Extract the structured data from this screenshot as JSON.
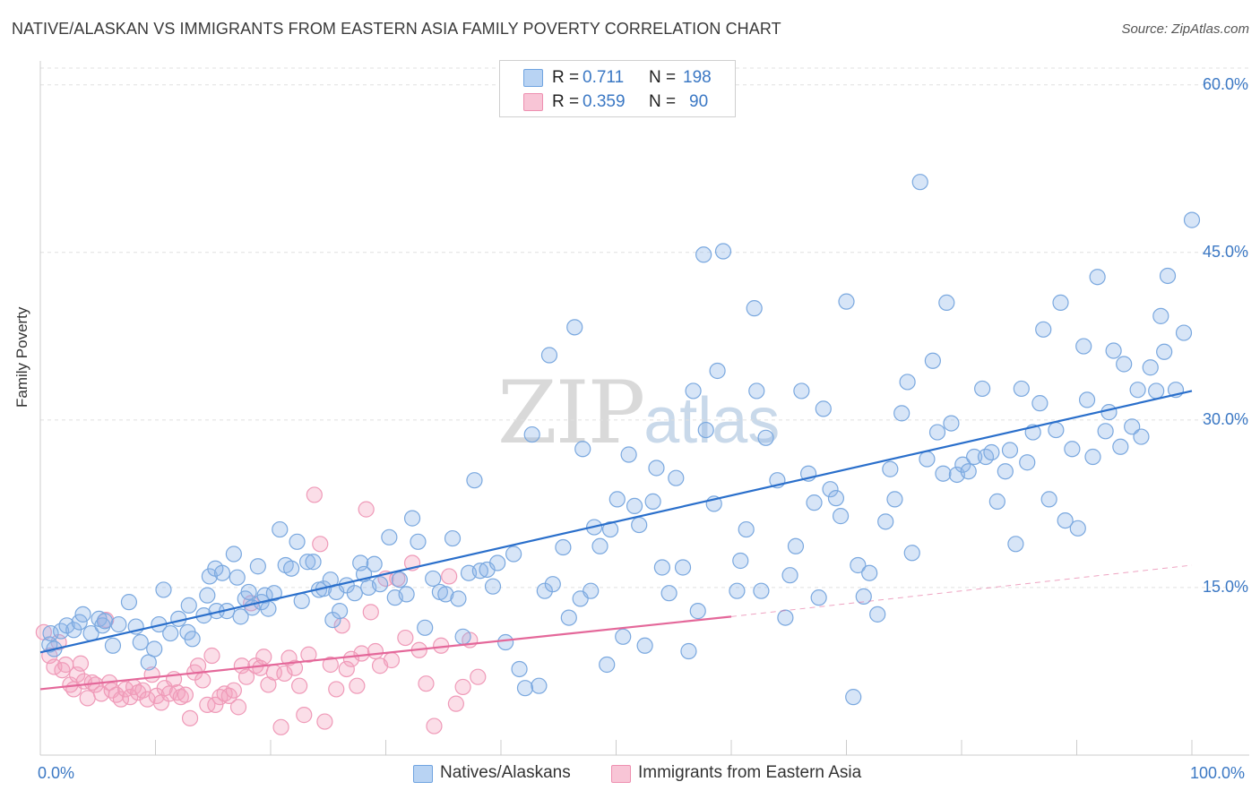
{
  "title": "NATIVE/ALASKAN VS IMMIGRANTS FROM EASTERN ASIA FAMILY POVERTY CORRELATION CHART",
  "source": "Source: ZipAtlas.com",
  "watermark": {
    "zip": "ZIP",
    "atlas": "atlas"
  },
  "legend": {
    "rows": [
      {
        "r_label": "R =",
        "r_value": "0.711",
        "n_label": "N =",
        "n_value": "198",
        "color": "#6fa3e0",
        "fill": "#b8d3f3"
      },
      {
        "r_label": "R =",
        "r_value": "0.359",
        "n_label": "N =",
        "n_value": "90",
        "color": "#ee8fb0",
        "fill": "#f8c5d6"
      }
    ]
  },
  "bottom_legend": [
    {
      "label": "Natives/Alaskans",
      "color": "#6fa3e0",
      "fill": "#b8d3f3"
    },
    {
      "label": "Immigrants from Eastern Asia",
      "color": "#ee8fb0",
      "fill": "#f8c5d6"
    }
  ],
  "colors": {
    "blue_point_fill": "rgba(140,180,232,0.35)",
    "blue_point_stroke": "#7aa8df",
    "blue_line": "#2a6fcb",
    "pink_point_fill": "rgba(244,160,190,0.35)",
    "pink_point_stroke": "#ef9ab8",
    "pink_line": "#e4689a",
    "grid": "#e0e0e0",
    "axis": "#cccccc",
    "tick_label": "#3b78c4"
  },
  "chart_data": {
    "type": "scatter",
    "title": "NATIVE/ALASKAN VS IMMIGRANTS FROM EASTERN ASIA FAMILY POVERTY CORRELATION CHART",
    "xlabel": "",
    "ylabel": "Family Poverty",
    "x_tick_labels": [
      "0.0%",
      "100.0%"
    ],
    "y_tick_labels": [
      "15.0%",
      "30.0%",
      "45.0%",
      "60.0%"
    ],
    "y_ticks": [
      15,
      30,
      45,
      60
    ],
    "xlim": [
      0,
      100
    ],
    "ylim": [
      0,
      61.5
    ],
    "grid": "horizontal dashed",
    "legend_position": "top-center",
    "series": [
      {
        "name": "Natives/Alaskans",
        "r": 0.711,
        "n": 198,
        "trend": {
          "x": [
            0,
            100
          ],
          "y": [
            9.2,
            32.6
          ],
          "style": "solid"
        },
        "points": [
          [
            0.8,
            9.9
          ],
          [
            0.9,
            10.9
          ],
          [
            1.2,
            9.5
          ],
          [
            1.8,
            11.1
          ],
          [
            2.3,
            11.6
          ],
          [
            2.9,
            11.2
          ],
          [
            3.4,
            11.9
          ],
          [
            3.7,
            12.6
          ],
          [
            4.4,
            10.9
          ],
          [
            5.1,
            12.2
          ],
          [
            5.4,
            11.6
          ],
          [
            5.6,
            12.0
          ],
          [
            6.3,
            9.8
          ],
          [
            6.8,
            11.7
          ],
          [
            7.7,
            13.7
          ],
          [
            8.3,
            11.5
          ],
          [
            8.7,
            10.1
          ],
          [
            9.4,
            8.3
          ],
          [
            9.9,
            9.5
          ],
          [
            10.3,
            11.7
          ],
          [
            10.7,
            14.8
          ],
          [
            11.3,
            10.9
          ],
          [
            12.0,
            12.2
          ],
          [
            12.8,
            11.0
          ],
          [
            12.9,
            13.4
          ],
          [
            13.2,
            10.4
          ],
          [
            14.2,
            12.5
          ],
          [
            14.5,
            14.3
          ],
          [
            14.7,
            16.0
          ],
          [
            15.2,
            16.7
          ],
          [
            15.3,
            12.9
          ],
          [
            15.8,
            16.3
          ],
          [
            16.2,
            12.9
          ],
          [
            16.8,
            18.0
          ],
          [
            17.1,
            15.9
          ],
          [
            17.4,
            12.4
          ],
          [
            17.8,
            14.0
          ],
          [
            18.1,
            14.6
          ],
          [
            18.4,
            13.2
          ],
          [
            18.9,
            16.9
          ],
          [
            19.2,
            13.7
          ],
          [
            19.5,
            14.3
          ],
          [
            19.8,
            13.1
          ],
          [
            20.3,
            14.5
          ],
          [
            20.8,
            20.2
          ],
          [
            21.3,
            17.0
          ],
          [
            21.8,
            16.7
          ],
          [
            22.3,
            19.1
          ],
          [
            22.7,
            13.8
          ],
          [
            23.2,
            17.3
          ],
          [
            23.7,
            17.3
          ],
          [
            24.2,
            14.8
          ],
          [
            24.6,
            14.9
          ],
          [
            25.2,
            15.7
          ],
          [
            25.4,
            12.1
          ],
          [
            25.7,
            14.6
          ],
          [
            26.0,
            12.9
          ],
          [
            26.6,
            15.2
          ],
          [
            27.3,
            14.5
          ],
          [
            27.8,
            17.2
          ],
          [
            28.1,
            16.2
          ],
          [
            28.5,
            15.0
          ],
          [
            29.0,
            17.1
          ],
          [
            29.5,
            15.3
          ],
          [
            30.3,
            19.5
          ],
          [
            30.8,
            14.1
          ],
          [
            31.2,
            15.7
          ],
          [
            31.8,
            14.4
          ],
          [
            32.3,
            21.2
          ],
          [
            32.8,
            19.1
          ],
          [
            33.4,
            11.4
          ],
          [
            34.1,
            15.8
          ],
          [
            34.7,
            14.6
          ],
          [
            35.2,
            14.4
          ],
          [
            35.8,
            19.4
          ],
          [
            36.3,
            14.0
          ],
          [
            36.7,
            10.6
          ],
          [
            37.2,
            16.3
          ],
          [
            37.7,
            24.6
          ],
          [
            38.2,
            16.5
          ],
          [
            38.8,
            16.6
          ],
          [
            39.3,
            15.1
          ],
          [
            39.7,
            17.2
          ],
          [
            40.4,
            10.1
          ],
          [
            41.1,
            18.0
          ],
          [
            41.6,
            7.7
          ],
          [
            42.1,
            6.0
          ],
          [
            42.7,
            28.7
          ],
          [
            43.3,
            6.2
          ],
          [
            43.8,
            14.7
          ],
          [
            44.2,
            35.8
          ],
          [
            44.5,
            15.3
          ],
          [
            45.4,
            18.6
          ],
          [
            45.9,
            12.3
          ],
          [
            46.4,
            38.3
          ],
          [
            46.9,
            14.0
          ],
          [
            47.1,
            27.4
          ],
          [
            47.8,
            14.7
          ],
          [
            48.1,
            20.4
          ],
          [
            48.6,
            18.7
          ],
          [
            49.2,
            8.1
          ],
          [
            49.5,
            20.2
          ],
          [
            50.1,
            22.9
          ],
          [
            50.6,
            10.6
          ],
          [
            51.1,
            26.9
          ],
          [
            51.6,
            22.3
          ],
          [
            52.0,
            20.6
          ],
          [
            52.5,
            9.8
          ],
          [
            53.2,
            22.7
          ],
          [
            53.5,
            25.7
          ],
          [
            54.0,
            16.8
          ],
          [
            54.6,
            14.5
          ],
          [
            55.2,
            24.8
          ],
          [
            55.8,
            16.8
          ],
          [
            56.3,
            9.3
          ],
          [
            56.7,
            32.6
          ],
          [
            57.1,
            12.9
          ],
          [
            57.6,
            44.8
          ],
          [
            57.8,
            29.1
          ],
          [
            58.5,
            22.5
          ],
          [
            58.8,
            34.4
          ],
          [
            59.3,
            45.1
          ],
          [
            60.5,
            14.7
          ],
          [
            60.8,
            17.4
          ],
          [
            61.3,
            20.2
          ],
          [
            62.0,
            40.0
          ],
          [
            62.2,
            32.6
          ],
          [
            62.6,
            14.7
          ],
          [
            63.0,
            28.4
          ],
          [
            64.0,
            24.6
          ],
          [
            64.7,
            12.3
          ],
          [
            65.1,
            16.1
          ],
          [
            65.6,
            18.7
          ],
          [
            66.1,
            32.6
          ],
          [
            66.7,
            25.2
          ],
          [
            67.2,
            22.6
          ],
          [
            67.6,
            14.1
          ],
          [
            68.0,
            31.0
          ],
          [
            68.6,
            23.8
          ],
          [
            69.1,
            23.0
          ],
          [
            69.5,
            21.4
          ],
          [
            70.0,
            40.6
          ],
          [
            70.6,
            5.2
          ],
          [
            71.0,
            17.0
          ],
          [
            71.5,
            14.2
          ],
          [
            72.0,
            16.3
          ],
          [
            72.7,
            12.6
          ],
          [
            73.4,
            20.9
          ],
          [
            73.8,
            25.6
          ],
          [
            74.2,
            22.9
          ],
          [
            74.8,
            30.6
          ],
          [
            75.3,
            33.4
          ],
          [
            75.7,
            18.1
          ],
          [
            76.4,
            51.3
          ],
          [
            77.0,
            26.5
          ],
          [
            77.5,
            35.3
          ],
          [
            77.9,
            28.9
          ],
          [
            78.4,
            25.2
          ],
          [
            78.7,
            40.5
          ],
          [
            79.1,
            29.7
          ],
          [
            79.6,
            25.1
          ],
          [
            80.1,
            26.0
          ],
          [
            80.6,
            25.4
          ],
          [
            81.1,
            26.7
          ],
          [
            81.8,
            32.8
          ],
          [
            82.1,
            26.7
          ],
          [
            82.6,
            27.1
          ],
          [
            83.1,
            22.7
          ],
          [
            83.8,
            25.4
          ],
          [
            84.2,
            27.3
          ],
          [
            84.7,
            18.9
          ],
          [
            85.2,
            32.8
          ],
          [
            85.7,
            26.2
          ],
          [
            86.2,
            28.9
          ],
          [
            86.8,
            31.5
          ],
          [
            87.1,
            38.1
          ],
          [
            87.6,
            22.9
          ],
          [
            88.2,
            29.1
          ],
          [
            88.6,
            40.5
          ],
          [
            89.0,
            21.0
          ],
          [
            89.6,
            27.4
          ],
          [
            90.1,
            20.3
          ],
          [
            90.6,
            36.6
          ],
          [
            90.9,
            31.8
          ],
          [
            91.4,
            26.7
          ],
          [
            91.8,
            42.8
          ],
          [
            92.5,
            29.0
          ],
          [
            92.8,
            30.7
          ],
          [
            93.2,
            36.2
          ],
          [
            93.8,
            27.6
          ],
          [
            94.1,
            35.0
          ],
          [
            94.8,
            29.4
          ],
          [
            95.3,
            32.7
          ],
          [
            95.6,
            28.5
          ],
          [
            96.4,
            34.7
          ],
          [
            96.9,
            32.6
          ],
          [
            97.3,
            39.3
          ],
          [
            97.6,
            36.1
          ],
          [
            97.9,
            42.9
          ],
          [
            98.6,
            32.7
          ],
          [
            99.3,
            37.8
          ],
          [
            100.0,
            47.9
          ]
        ]
      },
      {
        "name": "Immigrants from Eastern Asia",
        "r": 0.359,
        "n": 90,
        "trend": {
          "x": [
            0,
            60
          ],
          "y": [
            5.9,
            12.4
          ],
          "x_dashed_end": 100,
          "y_dashed_end": 17.0,
          "style": "solid then dashed"
        },
        "points": [
          [
            0.3,
            11.0
          ],
          [
            0.8,
            8.9
          ],
          [
            1.2,
            7.9
          ],
          [
            1.6,
            10.1
          ],
          [
            1.9,
            7.6
          ],
          [
            2.2,
            8.1
          ],
          [
            2.6,
            6.3
          ],
          [
            2.9,
            5.9
          ],
          [
            3.2,
            7.2
          ],
          [
            3.5,
            8.2
          ],
          [
            3.8,
            6.6
          ],
          [
            4.1,
            5.1
          ],
          [
            4.5,
            6.5
          ],
          [
            4.8,
            6.3
          ],
          [
            5.3,
            5.5
          ],
          [
            5.7,
            12.1
          ],
          [
            6.0,
            6.5
          ],
          [
            6.2,
            5.8
          ],
          [
            6.6,
            5.4
          ],
          [
            7.0,
            5.0
          ],
          [
            7.4,
            5.9
          ],
          [
            7.8,
            5.2
          ],
          [
            8.1,
            6.1
          ],
          [
            8.5,
            5.6
          ],
          [
            8.9,
            5.8
          ],
          [
            9.3,
            5.0
          ],
          [
            9.7,
            7.2
          ],
          [
            10.1,
            5.3
          ],
          [
            10.5,
            4.7
          ],
          [
            10.8,
            6.0
          ],
          [
            11.2,
            5.5
          ],
          [
            11.6,
            6.8
          ],
          [
            11.9,
            5.6
          ],
          [
            12.2,
            5.2
          ],
          [
            12.6,
            5.4
          ],
          [
            13.0,
            3.3
          ],
          [
            13.4,
            7.4
          ],
          [
            13.7,
            8.0
          ],
          [
            14.1,
            6.7
          ],
          [
            14.5,
            4.5
          ],
          [
            14.9,
            8.9
          ],
          [
            15.2,
            4.5
          ],
          [
            15.6,
            5.2
          ],
          [
            16.0,
            5.5
          ],
          [
            16.4,
            5.3
          ],
          [
            16.8,
            5.8
          ],
          [
            17.2,
            4.3
          ],
          [
            17.5,
            8.0
          ],
          [
            17.9,
            7.0
          ],
          [
            18.3,
            13.6
          ],
          [
            18.7,
            8.0
          ],
          [
            19.1,
            7.8
          ],
          [
            19.4,
            8.8
          ],
          [
            19.8,
            6.3
          ],
          [
            20.3,
            7.4
          ],
          [
            20.9,
            2.5
          ],
          [
            21.2,
            7.3
          ],
          [
            21.6,
            8.7
          ],
          [
            22.1,
            7.8
          ],
          [
            22.5,
            6.2
          ],
          [
            22.9,
            3.6
          ],
          [
            23.3,
            9.0
          ],
          [
            23.8,
            23.3
          ],
          [
            24.3,
            18.9
          ],
          [
            24.7,
            3.0
          ],
          [
            25.2,
            8.1
          ],
          [
            25.7,
            5.9
          ],
          [
            26.2,
            11.6
          ],
          [
            26.6,
            7.7
          ],
          [
            27.0,
            8.6
          ],
          [
            27.5,
            6.2
          ],
          [
            27.9,
            9.1
          ],
          [
            28.3,
            22.0
          ],
          [
            28.7,
            12.8
          ],
          [
            29.1,
            9.3
          ],
          [
            29.5,
            8.0
          ],
          [
            30.0,
            15.8
          ],
          [
            30.5,
            8.5
          ],
          [
            31.0,
            15.8
          ],
          [
            31.7,
            10.5
          ],
          [
            32.3,
            17.2
          ],
          [
            32.9,
            9.4
          ],
          [
            33.5,
            6.4
          ],
          [
            34.2,
            2.6
          ],
          [
            34.8,
            9.8
          ],
          [
            35.5,
            16.0
          ],
          [
            36.1,
            4.6
          ],
          [
            36.7,
            6.1
          ],
          [
            37.3,
            10.3
          ],
          [
            38.0,
            7.0
          ]
        ]
      }
    ]
  }
}
